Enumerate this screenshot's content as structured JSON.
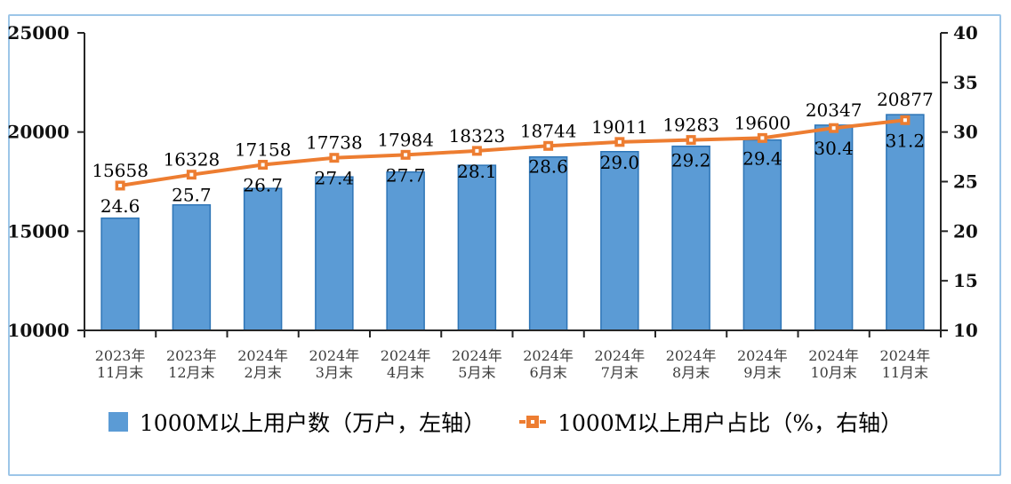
{
  "colors": {
    "bar_fill": "#5B9BD5",
    "bar_border": "#2E75B6",
    "line": "#ED7D31",
    "marker_center": "#FFFFFF",
    "frame_border": "#9DC6E8",
    "axis": "#262626",
    "x_label": "#3d3d3d"
  },
  "legend": {
    "items": [
      {
        "label": "1000M以上用户数（万户，左轴）",
        "swatch": "blue-square"
      },
      {
        "label": "1000M以上用户占比（%，右轴）",
        "swatch": "orange-line-marker"
      }
    ]
  },
  "chart_data": {
    "type": "bar",
    "subtype": "bar+line combo, dual axis",
    "categories": [
      [
        "2023年",
        "11月末"
      ],
      [
        "2023年",
        "12月末"
      ],
      [
        "2024年",
        "2月末"
      ],
      [
        "2024年",
        "3月末"
      ],
      [
        "2024年",
        "4月末"
      ],
      [
        "2024年",
        "5月末"
      ],
      [
        "2024年",
        "6月末"
      ],
      [
        "2024年",
        "7月末"
      ],
      [
        "2024年",
        "8月末"
      ],
      [
        "2024年",
        "9月末"
      ],
      [
        "2024年",
        "10月末"
      ],
      [
        "2024年",
        "11月末"
      ]
    ],
    "series": [
      {
        "name": "1000M以上用户数（万户，左轴）",
        "type": "bar",
        "axis": "left",
        "values": [
          15658,
          16328,
          17158,
          17738,
          17984,
          18323,
          18744,
          19011,
          19283,
          19600,
          20347,
          20877
        ],
        "labels": [
          "15658",
          "16328",
          "17158",
          "17738",
          "17984",
          "18323",
          "18744",
          "19011",
          "19283",
          "19600",
          "20347",
          "20877"
        ]
      },
      {
        "name": "1000M以上用户占比（%，右轴）",
        "type": "line",
        "axis": "right",
        "values": [
          24.6,
          25.7,
          26.7,
          27.4,
          27.7,
          28.1,
          28.6,
          29.0,
          29.2,
          29.4,
          30.4,
          31.2
        ],
        "labels": [
          "24.6",
          "25.7",
          "26.7",
          "27.4",
          "27.7",
          "28.1",
          "28.6",
          "29.0",
          "29.2",
          "29.4",
          "30.4",
          "31.2"
        ]
      }
    ],
    "left_axis": {
      "min": 10000,
      "max": 25000,
      "ticks": [
        25000,
        20000,
        15000,
        10000
      ]
    },
    "right_axis": {
      "min": 10,
      "max": 40,
      "ticks": [
        40,
        35,
        30,
        25,
        20,
        15,
        10
      ]
    },
    "title": "",
    "grid": false,
    "legend_position": "bottom"
  }
}
